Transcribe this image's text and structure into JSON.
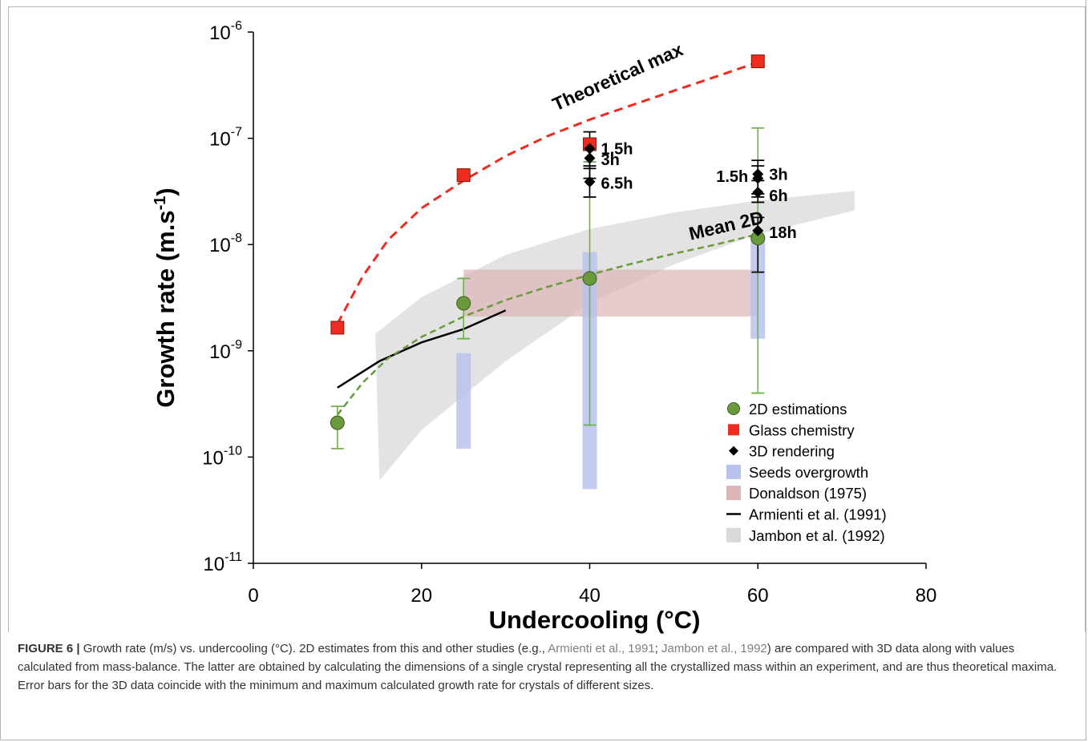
{
  "chart_data": {
    "type": "scatter",
    "xlabel": "Undercooling (°C)",
    "ylabel_main": "Growth rate (m.s",
    "ylabel_sup": "-1",
    "ylabel_end": ")",
    "xlim": [
      0,
      80
    ],
    "ylim": [
      1e-11,
      1e-06
    ],
    "yscale": "log",
    "x_ticks": [
      0,
      20,
      40,
      60,
      80
    ],
    "y_ticks": [
      {
        "value": 1e-11,
        "base": "10",
        "exp": "-11"
      },
      {
        "value": 1e-10,
        "base": "10",
        "exp": "-10"
      },
      {
        "value": 1e-09,
        "base": "10",
        "exp": "-9"
      },
      {
        "value": 1e-08,
        "base": "10",
        "exp": "-8"
      },
      {
        "value": 1e-07,
        "base": "10",
        "exp": "-7"
      },
      {
        "value": 1e-06,
        "base": "10",
        "exp": "-6"
      }
    ],
    "series": [
      {
        "name": "2D estimations",
        "kind": "circle",
        "color": "#6b9a3d",
        "errorbar_color": "#6db34a",
        "points": [
          {
            "x": 10,
            "y": 2.1e-10,
            "ylo": 1.2e-10,
            "yhi": 3e-10
          },
          {
            "x": 25,
            "y": 2.8e-09,
            "ylo": 1.3e-09,
            "yhi": 4.8e-09
          },
          {
            "x": 40,
            "y": 4.8e-09,
            "ylo": 2e-10,
            "yhi": 6e-08
          },
          {
            "x": 60,
            "y": 1.15e-08,
            "ylo": 4e-10,
            "yhi": 1.25e-07
          }
        ]
      },
      {
        "name": "Glass chemistry",
        "kind": "square",
        "color": "#ee2b1f",
        "points": [
          {
            "x": 10,
            "y": 1.65e-09
          },
          {
            "x": 25,
            "y": 4.5e-08
          },
          {
            "x": 40,
            "y": 8.8e-08
          },
          {
            "x": 60,
            "y": 5.3e-07
          }
        ]
      },
      {
        "name": "3D rendering",
        "kind": "diamond",
        "color": "#000000",
        "points": [
          {
            "x": 40,
            "y": 8e-08,
            "ylo": 5.2e-08,
            "yhi": 1.15e-07
          },
          {
            "x": 40,
            "y": 6.5e-08,
            "ylo": 4.2e-08,
            "yhi": 9e-08
          },
          {
            "x": 40,
            "y": 3.9e-08,
            "ylo": 2.8e-08,
            "yhi": 5.5e-08
          },
          {
            "x": 60,
            "y": 4.6e-08,
            "ylo": 3e-08,
            "yhi": 6.2e-08
          },
          {
            "x": 60,
            "y": 4.2e-08,
            "ylo": 2.8e-08,
            "yhi": 5.5e-08
          },
          {
            "x": 60,
            "y": 3.1e-08,
            "ylo": 2.5e-08,
            "yhi": 4e-08
          },
          {
            "x": 60,
            "y": 1.35e-08,
            "ylo": 5.5e-09,
            "yhi": 1.8e-08
          }
        ]
      },
      {
        "name": "Seeds overgrowth",
        "kind": "bar-range",
        "color": "#b8c2ec",
        "bars": [
          {
            "x": 25,
            "ylo": 1.2e-10,
            "yhi": 9.5e-10
          },
          {
            "x": 40,
            "ylo": 5e-11,
            "yhi": 8.5e-09
          },
          {
            "x": 60,
            "ylo": 1.3e-09,
            "yhi": 1.15e-08
          }
        ]
      },
      {
        "name": "Donaldson (1975)",
        "kind": "rect-range",
        "color": "#dcb3b6",
        "x": [
          25,
          60
        ],
        "y": [
          2.1e-09,
          5.8e-09
        ]
      },
      {
        "name": "Armienti et al. (1991)",
        "kind": "line",
        "color": "#000000",
        "points": [
          [
            10,
            4.5e-10
          ],
          [
            15,
            8e-10
          ],
          [
            20,
            1.2e-09
          ],
          [
            25,
            1.6e-09
          ],
          [
            30,
            2.4e-09
          ]
        ]
      },
      {
        "name": "Jambon et al. (1992)",
        "kind": "band",
        "color": "#d9d9d9",
        "upper": [
          [
            14.5,
            1.45e-09
          ],
          [
            20,
            3.2e-09
          ],
          [
            30,
            8e-09
          ],
          [
            40,
            1.4e-08
          ],
          [
            50,
            2e-08
          ],
          [
            60,
            2.6e-08
          ],
          [
            71.5,
            3.2e-08
          ]
        ],
        "lower": [
          [
            71.5,
            2.1e-08
          ],
          [
            60,
            1.25e-08
          ],
          [
            50,
            6.5e-09
          ],
          [
            40,
            2.8e-09
          ],
          [
            30,
            8e-10
          ],
          [
            20,
            1.8e-10
          ],
          [
            15,
            6e-11
          ]
        ]
      }
    ],
    "fits": [
      {
        "label": "Theoretical max",
        "color": "#ee2b1f",
        "label_pos": {
          "x": 36,
          "y": 1.8e-07,
          "angle": -24
        },
        "points": [
          [
            10,
            1.8e-09
          ],
          [
            13,
            5e-09
          ],
          [
            16,
            1.1e-08
          ],
          [
            20,
            2.2e-08
          ],
          [
            25,
            4e-08
          ],
          [
            30,
            6.8e-08
          ],
          [
            35,
            1.05e-07
          ],
          [
            40,
            1.5e-07
          ],
          [
            45,
            2.05e-07
          ],
          [
            50,
            2.8e-07
          ],
          [
            55,
            3.8e-07
          ],
          [
            60,
            5.2e-07
          ]
        ]
      },
      {
        "label": "Mean 2D",
        "color": "#6b9a3d",
        "label_pos": {
          "x": 52,
          "y": 1.1e-08,
          "angle": -13
        },
        "points": [
          [
            10,
            2.5e-10
          ],
          [
            13,
            5e-10
          ],
          [
            16,
            8.5e-10
          ],
          [
            20,
            1.35e-09
          ],
          [
            25,
            2.1e-09
          ],
          [
            30,
            3e-09
          ],
          [
            35,
            4e-09
          ],
          [
            40,
            5.2e-09
          ],
          [
            45,
            6.6e-09
          ],
          [
            50,
            8.2e-09
          ],
          [
            55,
            1e-08
          ],
          [
            60,
            1.25e-08
          ]
        ]
      }
    ],
    "annotations": [
      {
        "text": "1.5h",
        "x": 40,
        "y": 8e-08,
        "side": "right"
      },
      {
        "text": "3h",
        "x": 40,
        "y": 6.3e-08,
        "side": "right"
      },
      {
        "text": "6.5h",
        "x": 40,
        "y": 3.8e-08,
        "side": "right"
      },
      {
        "text": "1.5h",
        "x": 60,
        "y": 4.4e-08,
        "side": "left"
      },
      {
        "text": "3h",
        "x": 60,
        "y": 4.6e-08,
        "side": "right"
      },
      {
        "text": "6h",
        "x": 60,
        "y": 2.9e-08,
        "side": "right"
      },
      {
        "text": "18h",
        "x": 60,
        "y": 1.3e-08,
        "side": "right"
      }
    ],
    "legend_position": "bottom-right",
    "grid": false
  },
  "caption": {
    "label": "FIGURE 6 |",
    "text_1": " Growth rate (m/s) vs. undercooling (°C). 2D estimates from this and other studies (e.g., ",
    "ref_1": "Armienti et al., 1991",
    "text_2": "; ",
    "ref_2": "Jambon et al., 1992",
    "text_3": ") are compared with 3D data along with values calculated from mass-balance. The latter are obtained by calculating the dimensions of a single crystal representing all the crystallized mass within an experiment, and are thus theoretical maxima. Error bars for the 3D data coincide with the minimum and maximum calculated growth rate for crystals of different sizes."
  }
}
